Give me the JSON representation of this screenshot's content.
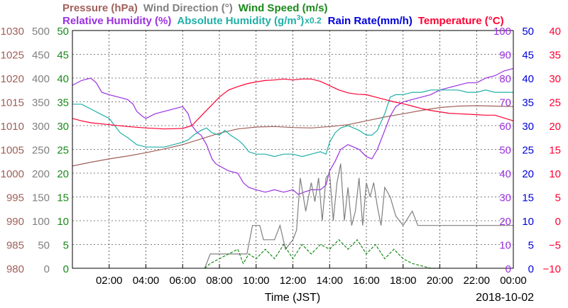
{
  "header": {
    "row1": [
      {
        "text": "Pressure (hPa)",
        "color": "#a0605a"
      },
      {
        "text": "Wind Direction (°)",
        "color": "#808080"
      },
      {
        "text": "Wind Speed (m/s)",
        "color": "#1a8a1a"
      }
    ],
    "row2": [
      {
        "text": "Relative Humidity (%)",
        "color": "#9b30e0"
      },
      {
        "text": "Absolute Humidity (g/m",
        "sup": "3",
        "tail": ")",
        "color": "#20b0a8",
        "suffix": "x0.2"
      },
      {
        "text": "Rain Rate(mm/h)",
        "color": "#0000dd"
      },
      {
        "text": "Temperature (°C)",
        "color": "#ff0033"
      }
    ]
  },
  "axes": {
    "left": [
      {
        "name": "pressure",
        "color": "#a0605a",
        "ticks": [
          "980",
          "985",
          "990",
          "995",
          "1000",
          "1005",
          "1010",
          "1015",
          "1020",
          "1025",
          "1030"
        ]
      },
      {
        "name": "wind-direction",
        "color": "#808080",
        "ticks": [
          "0",
          "50",
          "100",
          "150",
          "200",
          "250",
          "300",
          "350",
          "400",
          "450",
          "500"
        ]
      },
      {
        "name": "wind-speed",
        "color": "#1a8a1a",
        "ticks": [
          "0",
          "5",
          "10",
          "15",
          "20",
          "25",
          "30",
          "35",
          "40",
          "45",
          "50"
        ]
      }
    ],
    "right": [
      {
        "name": "humidity",
        "color": "#9b30e0",
        "ticks": [
          "0",
          "10",
          "20",
          "30",
          "40",
          "50",
          "60",
          "70",
          "80",
          "90",
          "100"
        ]
      },
      {
        "name": "rain-rate",
        "color": "#0000dd",
        "ticks": [
          "0",
          "5",
          "10",
          "15",
          "20",
          "25",
          "30",
          "35",
          "40",
          "45",
          "50"
        ]
      },
      {
        "name": "temperature",
        "color": "#ff0033",
        "ticks": [
          "−10",
          "−5",
          "0",
          "5",
          "10",
          "15",
          "20",
          "25",
          "30",
          "35",
          "40"
        ]
      }
    ],
    "x_ticks": [
      "02:00",
      "04:00",
      "06:00",
      "08:00",
      "10:00",
      "12:00",
      "14:00",
      "16:00",
      "18:00",
      "20:00",
      "22:00",
      "00:00"
    ],
    "x_label": "Time (JST)",
    "date": "2018-10-02"
  },
  "chart_data": {
    "type": "line",
    "x_unit": "hours",
    "x_range": [
      0,
      24
    ],
    "series": [
      {
        "name": "Pressure (hPa)",
        "axis": "pressure",
        "color": "#a0605a",
        "points": [
          [
            0,
            1001.5
          ],
          [
            1,
            1002.3
          ],
          [
            2,
            1003.0
          ],
          [
            3,
            1003.6
          ],
          [
            4,
            1004.3
          ],
          [
            5,
            1005.1
          ],
          [
            6,
            1006.0
          ],
          [
            7,
            1007.2
          ],
          [
            8,
            1008.4
          ],
          [
            9,
            1009.3
          ],
          [
            10,
            1009.7
          ],
          [
            11,
            1009.8
          ],
          [
            12,
            1009.6
          ],
          [
            13,
            1009.5
          ],
          [
            14,
            1009.8
          ],
          [
            15,
            1010.2
          ],
          [
            16,
            1011.0
          ],
          [
            17,
            1011.8
          ],
          [
            18,
            1012.5
          ],
          [
            19,
            1013.2
          ],
          [
            20,
            1013.8
          ],
          [
            21,
            1014.1
          ],
          [
            22,
            1014.2
          ],
          [
            23,
            1014.1
          ],
          [
            24,
            1014.0
          ]
        ]
      },
      {
        "name": "Relative Humidity (%)",
        "axis": "humidity",
        "color": "#9b30e0",
        "points": [
          [
            0,
            77
          ],
          [
            0.5,
            79
          ],
          [
            1,
            80
          ],
          [
            1.3,
            78
          ],
          [
            1.6,
            74
          ],
          [
            2,
            73
          ],
          [
            2.5,
            72
          ],
          [
            3,
            71
          ],
          [
            3.3,
            69
          ],
          [
            3.5,
            66
          ],
          [
            3.8,
            64
          ],
          [
            4,
            63
          ],
          [
            4.5,
            65
          ],
          [
            5,
            66
          ],
          [
            5.5,
            67
          ],
          [
            6,
            68
          ],
          [
            6.3,
            65
          ],
          [
            6.5,
            60
          ],
          [
            6.8,
            57
          ],
          [
            7,
            56
          ],
          [
            7.3,
            52
          ],
          [
            7.6,
            46
          ],
          [
            7.8,
            44
          ],
          [
            8,
            43
          ],
          [
            8.5,
            41
          ],
          [
            9,
            40
          ],
          [
            9.3,
            36
          ],
          [
            9.6,
            34
          ],
          [
            10,
            33
          ],
          [
            10.5,
            32
          ],
          [
            11,
            33
          ],
          [
            11.5,
            32
          ],
          [
            12,
            33
          ],
          [
            12.3,
            31
          ],
          [
            12.6,
            32
          ],
          [
            13,
            33
          ],
          [
            13.5,
            33
          ],
          [
            13.8,
            35
          ],
          [
            14,
            41
          ],
          [
            14.3,
            45
          ],
          [
            14.6,
            50
          ],
          [
            15,
            52
          ],
          [
            15.3,
            51
          ],
          [
            15.6,
            50
          ],
          [
            16,
            47
          ],
          [
            16.3,
            46
          ],
          [
            16.6,
            50
          ],
          [
            17,
            58
          ],
          [
            17.3,
            64
          ],
          [
            17.6,
            68
          ],
          [
            18,
            70
          ],
          [
            18.5,
            71
          ],
          [
            19,
            72
          ],
          [
            19.5,
            73
          ],
          [
            20,
            75
          ],
          [
            20.5,
            76
          ],
          [
            21,
            77
          ],
          [
            21.5,
            78
          ],
          [
            22,
            78
          ],
          [
            22.5,
            80
          ],
          [
            23,
            81
          ],
          [
            23.5,
            83
          ],
          [
            24,
            84
          ]
        ]
      },
      {
        "name": "Absolute Humidity ×0.2",
        "axis": "humidity",
        "color": "#20b0a8",
        "points": [
          [
            0,
            69
          ],
          [
            0.5,
            69
          ],
          [
            1,
            67
          ],
          [
            1.5,
            65
          ],
          [
            2,
            63
          ],
          [
            2.3,
            60
          ],
          [
            2.6,
            57
          ],
          [
            3,
            55
          ],
          [
            3.5,
            52
          ],
          [
            4,
            51
          ],
          [
            4.5,
            51
          ],
          [
            5,
            51
          ],
          [
            5.5,
            52
          ],
          [
            6,
            53
          ],
          [
            6.3,
            54
          ],
          [
            6.6,
            56
          ],
          [
            7,
            58
          ],
          [
            7.3,
            59
          ],
          [
            7.6,
            57
          ],
          [
            8,
            56
          ],
          [
            8.3,
            58
          ],
          [
            8.6,
            56
          ],
          [
            9,
            54
          ],
          [
            9.3,
            52
          ],
          [
            9.6,
            49
          ],
          [
            10,
            48
          ],
          [
            10.5,
            48
          ],
          [
            11,
            47
          ],
          [
            11.5,
            48
          ],
          [
            12,
            48
          ],
          [
            12.5,
            47
          ],
          [
            13,
            48
          ],
          [
            13.5,
            49
          ],
          [
            13.8,
            48
          ],
          [
            14,
            53
          ],
          [
            14.3,
            57
          ],
          [
            14.6,
            59
          ],
          [
            15,
            60
          ],
          [
            15.3,
            59
          ],
          [
            15.6,
            58
          ],
          [
            16,
            56
          ],
          [
            16.3,
            56
          ],
          [
            16.6,
            58
          ],
          [
            17,
            65
          ],
          [
            17.3,
            72
          ],
          [
            17.6,
            73
          ],
          [
            18,
            73
          ],
          [
            18.5,
            74
          ],
          [
            19,
            74
          ],
          [
            19.5,
            75
          ],
          [
            20,
            75
          ],
          [
            20.5,
            75
          ],
          [
            21,
            75
          ],
          [
            21.5,
            74
          ],
          [
            22,
            74
          ],
          [
            22.5,
            75
          ],
          [
            23,
            74
          ],
          [
            23.5,
            74
          ],
          [
            24,
            74
          ]
        ]
      },
      {
        "name": "Temperature (°C)",
        "axis": "temperature",
        "color": "#ff0033",
        "points": [
          [
            0,
            21.5
          ],
          [
            0.5,
            21
          ],
          [
            1,
            20.6
          ],
          [
            2,
            20.2
          ],
          [
            3,
            19.8
          ],
          [
            4,
            19.5
          ],
          [
            5,
            19.3
          ],
          [
            6,
            19.4
          ],
          [
            6.5,
            20
          ],
          [
            7,
            22
          ],
          [
            7.5,
            24
          ],
          [
            8,
            26
          ],
          [
            8.5,
            27.5
          ],
          [
            9,
            28.2
          ],
          [
            9.5,
            28.8
          ],
          [
            10,
            29.2
          ],
          [
            10.5,
            29.5
          ],
          [
            11,
            29.6
          ],
          [
            11.5,
            29.8
          ],
          [
            12,
            29.6
          ],
          [
            12.5,
            29.8
          ],
          [
            13,
            29.8
          ],
          [
            13.5,
            29.3
          ],
          [
            14,
            28.4
          ],
          [
            14.5,
            27.5
          ],
          [
            15,
            26.9
          ],
          [
            15.5,
            26.6
          ],
          [
            16,
            26.5
          ],
          [
            16.5,
            26
          ],
          [
            17,
            25.5
          ],
          [
            17.5,
            25
          ],
          [
            18,
            24.6
          ],
          [
            18.5,
            24.1
          ],
          [
            19,
            23.6
          ],
          [
            19.5,
            23.2
          ],
          [
            20,
            22.9
          ],
          [
            20.5,
            22.6
          ],
          [
            21,
            22.5
          ],
          [
            21.5,
            22.4
          ],
          [
            22,
            22.3
          ],
          [
            22.5,
            22.2
          ],
          [
            23,
            22.2
          ],
          [
            23.5,
            21.6
          ],
          [
            24,
            21.0
          ]
        ]
      },
      {
        "name": "Wind Direction (°)",
        "axis": "wind-direction",
        "color": "#808080",
        "points": [
          [
            7.2,
            0
          ],
          [
            7.5,
            30
          ],
          [
            8,
            30
          ],
          [
            8.5,
            30
          ],
          [
            9,
            30
          ],
          [
            9.5,
            30
          ],
          [
            9.8,
            90
          ],
          [
            10.2,
            90
          ],
          [
            10.4,
            60
          ],
          [
            10.7,
            60
          ],
          [
            11,
            60
          ],
          [
            11.3,
            90
          ],
          [
            11.6,
            40
          ],
          [
            12,
            60
          ],
          [
            12.2,
            80
          ],
          [
            12.4,
            190
          ],
          [
            12.7,
            120
          ],
          [
            13,
            180
          ],
          [
            13.2,
            140
          ],
          [
            13.4,
            190
          ],
          [
            13.6,
            100
          ],
          [
            13.8,
            190
          ],
          [
            14,
            200
          ],
          [
            14.2,
            100
          ],
          [
            14.4,
            180
          ],
          [
            14.6,
            220
          ],
          [
            14.8,
            100
          ],
          [
            15,
            170
          ],
          [
            15.2,
            90
          ],
          [
            15.4,
            120
          ],
          [
            15.6,
            190
          ],
          [
            15.8,
            90
          ],
          [
            16,
            180
          ],
          [
            16.2,
            150
          ],
          [
            16.4,
            180
          ],
          [
            16.6,
            130
          ],
          [
            16.8,
            90
          ],
          [
            17,
            170
          ],
          [
            17.3,
            150
          ],
          [
            17.6,
            110
          ],
          [
            18,
            90
          ],
          [
            18.5,
            120
          ],
          [
            18.8,
            90
          ],
          [
            19,
            90
          ],
          [
            20,
            90
          ],
          [
            21,
            90
          ],
          [
            22,
            90
          ],
          [
            23,
            90
          ],
          [
            24,
            90
          ]
        ]
      },
      {
        "name": "Wind Speed (m/s)",
        "axis": "wind-speed",
        "color": "#1a8a1a",
        "points": [
          [
            7.2,
            0
          ],
          [
            7.5,
            1
          ],
          [
            8,
            2
          ],
          [
            8.5,
            3
          ],
          [
            9,
            4
          ],
          [
            9.3,
            1
          ],
          [
            9.6,
            3
          ],
          [
            10,
            2
          ],
          [
            10.5,
            4
          ],
          [
            11,
            2
          ],
          [
            11.5,
            5
          ],
          [
            12,
            2
          ],
          [
            12.5,
            5
          ],
          [
            13,
            3
          ],
          [
            13.5,
            5
          ],
          [
            14,
            4
          ],
          [
            14.5,
            6
          ],
          [
            15,
            4
          ],
          [
            15.5,
            6
          ],
          [
            16,
            3
          ],
          [
            16.5,
            5
          ],
          [
            17,
            2
          ],
          [
            17.5,
            4
          ],
          [
            18,
            2
          ],
          [
            18.5,
            1
          ],
          [
            19,
            0.5
          ],
          [
            19.5,
            0
          ],
          [
            20,
            0
          ]
        ]
      }
    ]
  }
}
